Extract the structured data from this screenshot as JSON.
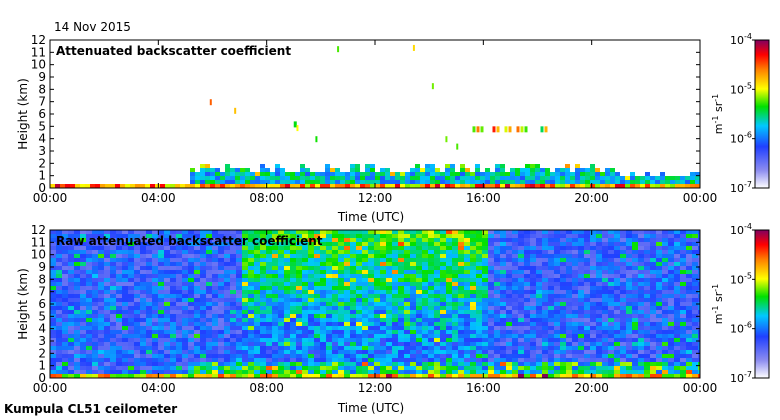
{
  "date": "14 Nov 2015",
  "instrument": "Kumpula CL51 ceilometer",
  "chart_data": [
    {
      "type": "heatmap",
      "title": "Attenuated backscatter coefficient",
      "xlabel": "Time (UTC)",
      "ylabel": "Height (km)",
      "xticks": [
        "00:00",
        "04:00",
        "08:00",
        "12:00",
        "16:00",
        "20:00",
        "00:00"
      ],
      "xlim_hours": [
        0,
        24
      ],
      "ylim": [
        0,
        12
      ],
      "yticks": [
        0,
        1,
        2,
        3,
        4,
        5,
        6,
        7,
        8,
        9,
        10,
        11,
        12
      ],
      "colorbar": {
        "unit": "m-1 sr-1",
        "min_exp": -7,
        "max_exp": -4,
        "tick_exponents": [
          -4,
          -5,
          -6,
          -7
        ],
        "base": "10"
      },
      "features": [
        {
          "name": "boundary layer",
          "time_start": 0,
          "time_end": 24,
          "height_max_km": 1.8
        },
        {
          "name": "mid-level cloud",
          "time_start": 9.0,
          "time_end": 9.3,
          "height_km": 5.2
        },
        {
          "name": "mid-level cloud",
          "time_start": 15.6,
          "time_end": 18.3,
          "height_km": 4.8
        }
      ]
    },
    {
      "type": "heatmap",
      "title": "Raw attenuated backscatter coefficient",
      "xlabel": "Time (UTC)",
      "ylabel": "Height (km)",
      "xticks": [
        "00:00",
        "04:00",
        "08:00",
        "12:00",
        "16:00",
        "20:00",
        "00:00"
      ],
      "xlim_hours": [
        0,
        24
      ],
      "ylim": [
        0,
        12
      ],
      "yticks": [
        0,
        1,
        2,
        3,
        4,
        5,
        6,
        7,
        8,
        9,
        10,
        11,
        12
      ],
      "colorbar": {
        "unit": "m-1 sr-1",
        "min_exp": -7,
        "max_exp": -4,
        "tick_exponents": [
          -4,
          -5,
          -6,
          -7
        ],
        "base": "10"
      }
    }
  ]
}
